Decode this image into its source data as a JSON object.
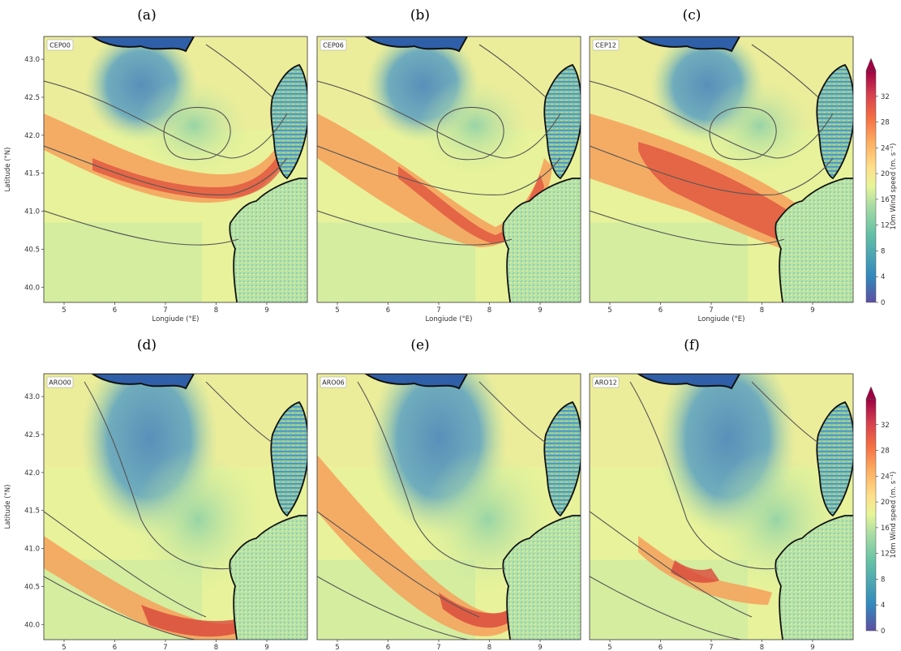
{
  "figure": {
    "panel_letters": [
      "(a)",
      "(b)",
      "(c)",
      "(d)",
      "(e)",
      "(f)"
    ]
  },
  "chart_data": [
    {
      "type": "heatmap",
      "panel": "(a)",
      "label": "CEP00",
      "xlabel": "Longiude (°E)",
      "ylabel": "Latitude (°N)",
      "xlim": [
        4.6,
        9.8
      ],
      "ylim": [
        39.8,
        43.3
      ],
      "xticks": [
        5,
        6,
        7,
        8,
        9
      ],
      "yticks": [
        40.0,
        40.5,
        41.0,
        41.5,
        42.0,
        42.5,
        43.0
      ]
    },
    {
      "type": "heatmap",
      "panel": "(b)",
      "label": "CEP06",
      "xlabel": "Longiude (°E)",
      "ylabel": "",
      "xlim": [
        4.6,
        9.8
      ],
      "ylim": [
        39.8,
        43.3
      ],
      "xticks": [
        5,
        6,
        7,
        8,
        9
      ],
      "yticks": []
    },
    {
      "type": "heatmap",
      "panel": "(c)",
      "label": "CEP12",
      "xlabel": "Longiude (°E)",
      "ylabel": "",
      "xlim": [
        4.6,
        9.8
      ],
      "ylim": [
        39.8,
        43.3
      ],
      "xticks": [
        5,
        6,
        7,
        8,
        9
      ],
      "yticks": []
    },
    {
      "type": "heatmap",
      "panel": "(d)",
      "label": "ARO00",
      "xlabel": "Longiude (°E)",
      "ylabel": "Latitude (°N)",
      "xlim": [
        4.6,
        9.8
      ],
      "ylim": [
        39.8,
        43.3
      ],
      "xticks": [
        5,
        6,
        7,
        8,
        9
      ],
      "yticks": [
        40.0,
        40.5,
        41.0,
        41.5,
        42.0,
        42.5,
        43.0
      ]
    },
    {
      "type": "heatmap",
      "panel": "(e)",
      "label": "ARO06",
      "xlabel": "Longiude (°E)",
      "ylabel": "",
      "xlim": [
        4.6,
        9.8
      ],
      "ylim": [
        39.8,
        43.3
      ],
      "xticks": [
        5,
        6,
        7,
        8,
        9
      ],
      "yticks": []
    },
    {
      "type": "heatmap",
      "panel": "(f)",
      "label": "ARO12",
      "xlabel": "Longiude (°E)",
      "ylabel": "",
      "xlim": [
        4.6,
        9.8
      ],
      "ylim": [
        39.8,
        43.3
      ],
      "xticks": [
        5,
        6,
        7,
        8,
        9
      ],
      "yticks": []
    }
  ],
  "colorbar": {
    "label": "10m Wind speed (m. s⁻¹)",
    "ticks": [
      0,
      4,
      8,
      12,
      16,
      20,
      24,
      28,
      32
    ],
    "range": [
      0,
      36
    ],
    "colors": [
      "#5e4fa2",
      "#3288bd",
      "#66c2a5",
      "#abdda4",
      "#e6f598",
      "#fee08b",
      "#fdae61",
      "#f46d43",
      "#d53e4f",
      "#9e0142"
    ]
  }
}
